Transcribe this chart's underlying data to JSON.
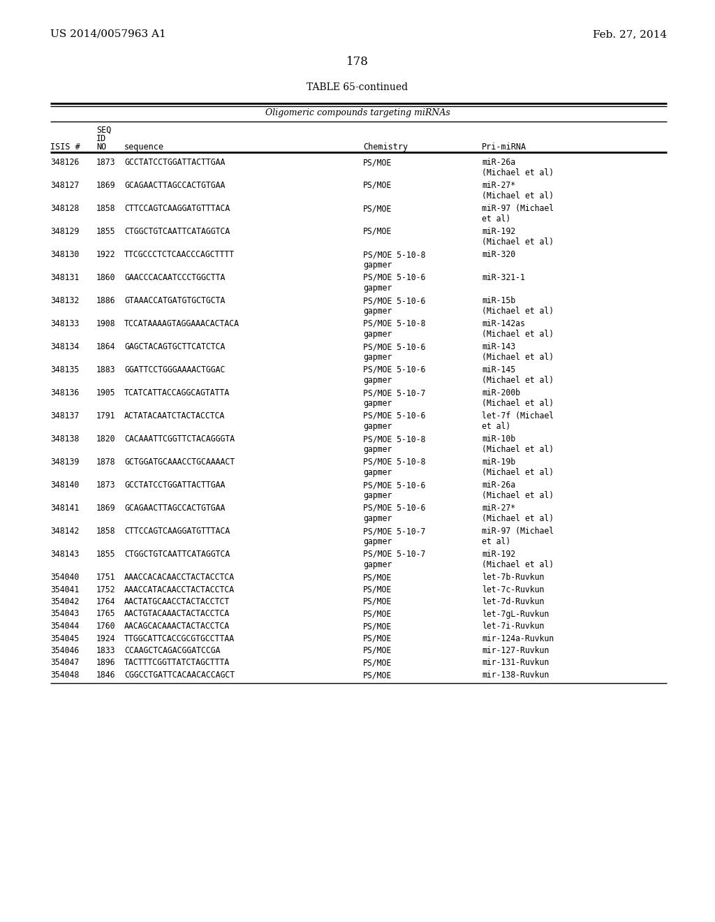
{
  "page_number": "178",
  "patent_left": "US 2014/0057963 A1",
  "patent_right": "Feb. 27, 2014",
  "table_title": "TABLE 65-continued",
  "table_subtitle": "Oligomeric compounds targeting miRNAs",
  "rows": [
    [
      "348126",
      "1873",
      "GCCTATCCTGGATTACTTGAA",
      "PS/MOE",
      "miR-26a\n(Michael et al)"
    ],
    [
      "348127",
      "1869",
      "GCAGAACTTAGCCACTGTGAA",
      "PS/MOE",
      "miR-27*\n(Michael et al)"
    ],
    [
      "348128",
      "1858",
      "CTTCCAGTCAAGGATGTTTACA",
      "PS/MOE",
      "miR-97 (Michael\net al)"
    ],
    [
      "348129",
      "1855",
      "CTGGCTGTCAATTCATAGGTCA",
      "PS/MOE",
      "miR-192\n(Michael et al)"
    ],
    [
      "348130",
      "1922",
      "TTCGCCCTCTCAACCCAGCTTTT",
      "PS/MOE 5-10-8\ngapmer",
      "miR-320"
    ],
    [
      "348131",
      "1860",
      "GAACCCACAATCCCTGGCTTA",
      "PS/MOE 5-10-6\ngapmer",
      "miR-321-1"
    ],
    [
      "348132",
      "1886",
      "GTAAACCATGATGTGCTGCTA",
      "PS/MOE 5-10-6\ngapmer",
      "miR-15b\n(Michael et al)"
    ],
    [
      "348133",
      "1908",
      "TCCATAAAAGTAGGAAACACTACA",
      "PS/MOE 5-10-8\ngapmer",
      "miR-142as\n(Michael et al)"
    ],
    [
      "348134",
      "1864",
      "GAGCTACAGTGCTTCATCTCA",
      "PS/MOE 5-10-6\ngapmer",
      "miR-143\n(Michael et al)"
    ],
    [
      "348135",
      "1883",
      "GGATTCCTGGGAAAACTGGAC",
      "PS/MOE 5-10-6\ngapmer",
      "miR-145\n(Michael et al)"
    ],
    [
      "348136",
      "1905",
      "TCATCATTACCAGGCAGTATTA",
      "PS/MOE 5-10-7\ngapmer",
      "miR-200b\n(Michael et al)"
    ],
    [
      "348137",
      "1791",
      "ACTATACAATCTACTACCTCA",
      "PS/MOE 5-10-6\ngapmer",
      "let-7f (Michael\net al)"
    ],
    [
      "348138",
      "1820",
      "CACAAATTCGGTTCTACAGGGTA",
      "PS/MOE 5-10-8\ngapmer",
      "miR-10b\n(Michael et al)"
    ],
    [
      "348139",
      "1878",
      "GCTGGATGCAAACCTGCAAAACT",
      "PS/MOE 5-10-8\ngapmer",
      "miR-19b\n(Michael et al)"
    ],
    [
      "348140",
      "1873",
      "GCCTATCCTGGATTACTTGAA",
      "PS/MOE 5-10-6\ngapmer",
      "miR-26a\n(Michael et al)"
    ],
    [
      "348141",
      "1869",
      "GCAGAACTTAGCCACTGTGAA",
      "PS/MOE 5-10-6\ngapmer",
      "miR-27*\n(Michael et al)"
    ],
    [
      "348142",
      "1858",
      "CTTCCAGTCAAGGATGTTTACA",
      "PS/MOE 5-10-7\ngapmer",
      "miR-97 (Michael\net al)"
    ],
    [
      "348143",
      "1855",
      "CTGGCTGTCAATTCATAGGTCA",
      "PS/MOE 5-10-7\ngapmer",
      "miR-192\n(Michael et al)"
    ],
    [
      "354040",
      "1751",
      "AAACCACACAACCTACTACCTCA",
      "PS/MOE",
      "let-7b-Ruvkun"
    ],
    [
      "354041",
      "1752",
      "AAACCATACAACCTACTACCTCA",
      "PS/MOE",
      "let-7c-Ruvkun"
    ],
    [
      "354042",
      "1764",
      "AACTATGCAACCTACTACCTCT",
      "PS/MOE",
      "let-7d-Ruvkun"
    ],
    [
      "354043",
      "1765",
      "AACTGTACAAACTACTACCTCA",
      "PS/MOE",
      "let-7gL-Ruvkun"
    ],
    [
      "354044",
      "1760",
      "AACAGCACAAACTACTACCTCA",
      "PS/MOE",
      "let-7i-Ruvkun"
    ],
    [
      "354045",
      "1924",
      "TTGGCATTCACCGCGTGCCTTAA",
      "PS/MOE",
      "mir-124a-Ruvkun"
    ],
    [
      "354046",
      "1833",
      "CCAAGCTCAGACGGATCCGA",
      "PS/MOE",
      "mir-127-Ruvkun"
    ],
    [
      "354047",
      "1896",
      "TACTTTCGGTTATCTAGCTTTA",
      "PS/MOE",
      "mir-131-Ruvkun"
    ],
    [
      "354048",
      "1846",
      "CGGCCTGATTCACAACACCAGCT",
      "PS/MOE",
      "mir-138-Ruvkun"
    ]
  ],
  "background_color": "#ffffff",
  "text_color": "#000000"
}
